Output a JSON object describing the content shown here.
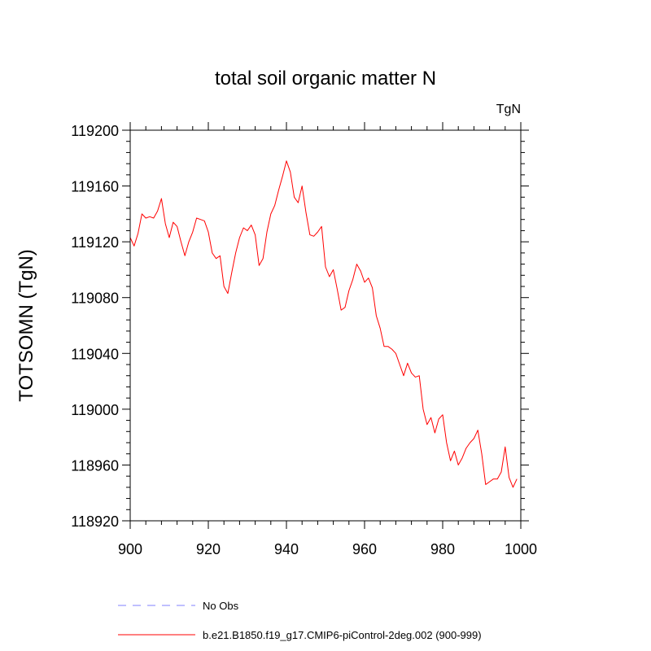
{
  "chart_data": {
    "type": "line",
    "title": "total soil organic matter N",
    "units_label": "TgN",
    "xlabel": "",
    "ylabel": "TOTSOMN  (TgN)",
    "xlim": [
      900,
      1000
    ],
    "ylim": [
      118920,
      119200
    ],
    "x_major_ticks": [
      900,
      920,
      940,
      960,
      980,
      1000
    ],
    "x_minor_step": 4,
    "y_major_ticks": [
      118920,
      118960,
      119000,
      119040,
      119080,
      119120,
      119160,
      119200
    ],
    "y_minor_step": 8,
    "x_tick_labels": [
      "900",
      "920",
      "940",
      "960",
      "980",
      "1000"
    ],
    "y_tick_labels": [
      "118920",
      "118960",
      "119000",
      "119040",
      "119080",
      "119120",
      "119160",
      "119200"
    ],
    "series": [
      {
        "name": "b.e21.B1850.f19_g17.CMIP6-piControl-2deg.002 (900-999)",
        "color": "#ff0000",
        "style": "solid",
        "x": [
          900,
          901,
          902,
          903,
          904,
          905,
          906,
          907,
          908,
          909,
          910,
          911,
          912,
          913,
          914,
          915,
          916,
          917,
          918,
          919,
          920,
          921,
          922,
          923,
          924,
          925,
          926,
          927,
          928,
          929,
          930,
          931,
          932,
          933,
          934,
          935,
          936,
          937,
          938,
          939,
          940,
          941,
          942,
          943,
          944,
          945,
          946,
          947,
          948,
          949,
          950,
          951,
          952,
          953,
          954,
          955,
          956,
          957,
          958,
          959,
          960,
          961,
          962,
          963,
          964,
          965,
          966,
          967,
          968,
          969,
          970,
          971,
          972,
          973,
          974,
          975,
          976,
          977,
          978,
          979,
          980,
          981,
          982,
          983,
          984,
          985,
          986,
          987,
          988,
          989,
          990,
          991,
          992,
          993,
          994,
          995,
          996,
          997,
          998,
          999
        ],
        "values": [
          119123,
          119117,
          119126,
          119140,
          119137,
          119138,
          119137,
          119142,
          119151,
          119133,
          119123,
          119134,
          119131,
          119120,
          119110,
          119120,
          119127,
          119137,
          119136,
          119135,
          119127,
          119112,
          119108,
          119110,
          119088,
          119083,
          119098,
          119112,
          119123,
          119130,
          119128,
          119132,
          119125,
          119103,
          119108,
          119127,
          119140,
          119146,
          119157,
          119167,
          119178,
          119170,
          119152,
          119148,
          119160,
          119141,
          119125,
          119124,
          119127,
          119131,
          119102,
          119095,
          119100,
          119086,
          119071,
          119073,
          119085,
          119093,
          119104,
          119099,
          119091,
          119094,
          119087,
          119067,
          119058,
          119045,
          119045,
          119043,
          119040,
          119032,
          119024,
          119033,
          119026,
          119023,
          119024,
          119000,
          118989,
          118994,
          118983,
          118993,
          118996,
          118976,
          118963,
          118970,
          118960,
          118965,
          118972,
          118976,
          118979,
          118985,
          118968,
          118946,
          118948,
          118950,
          118950,
          118955,
          118973,
          118951,
          118944,
          118950
        ]
      },
      {
        "name": "No Obs",
        "color": "#8080ff",
        "style": "dashed",
        "x": [],
        "values": []
      }
    ],
    "legend": {
      "position": "bottom-left",
      "entries": [
        {
          "label": "No Obs",
          "color": "#8080ff",
          "style": "dashed"
        },
        {
          "label": "b.e21.B1850.f19_g17.CMIP6-piControl-2deg.002 (900-999)",
          "color": "#ff0000",
          "style": "solid"
        }
      ]
    }
  }
}
